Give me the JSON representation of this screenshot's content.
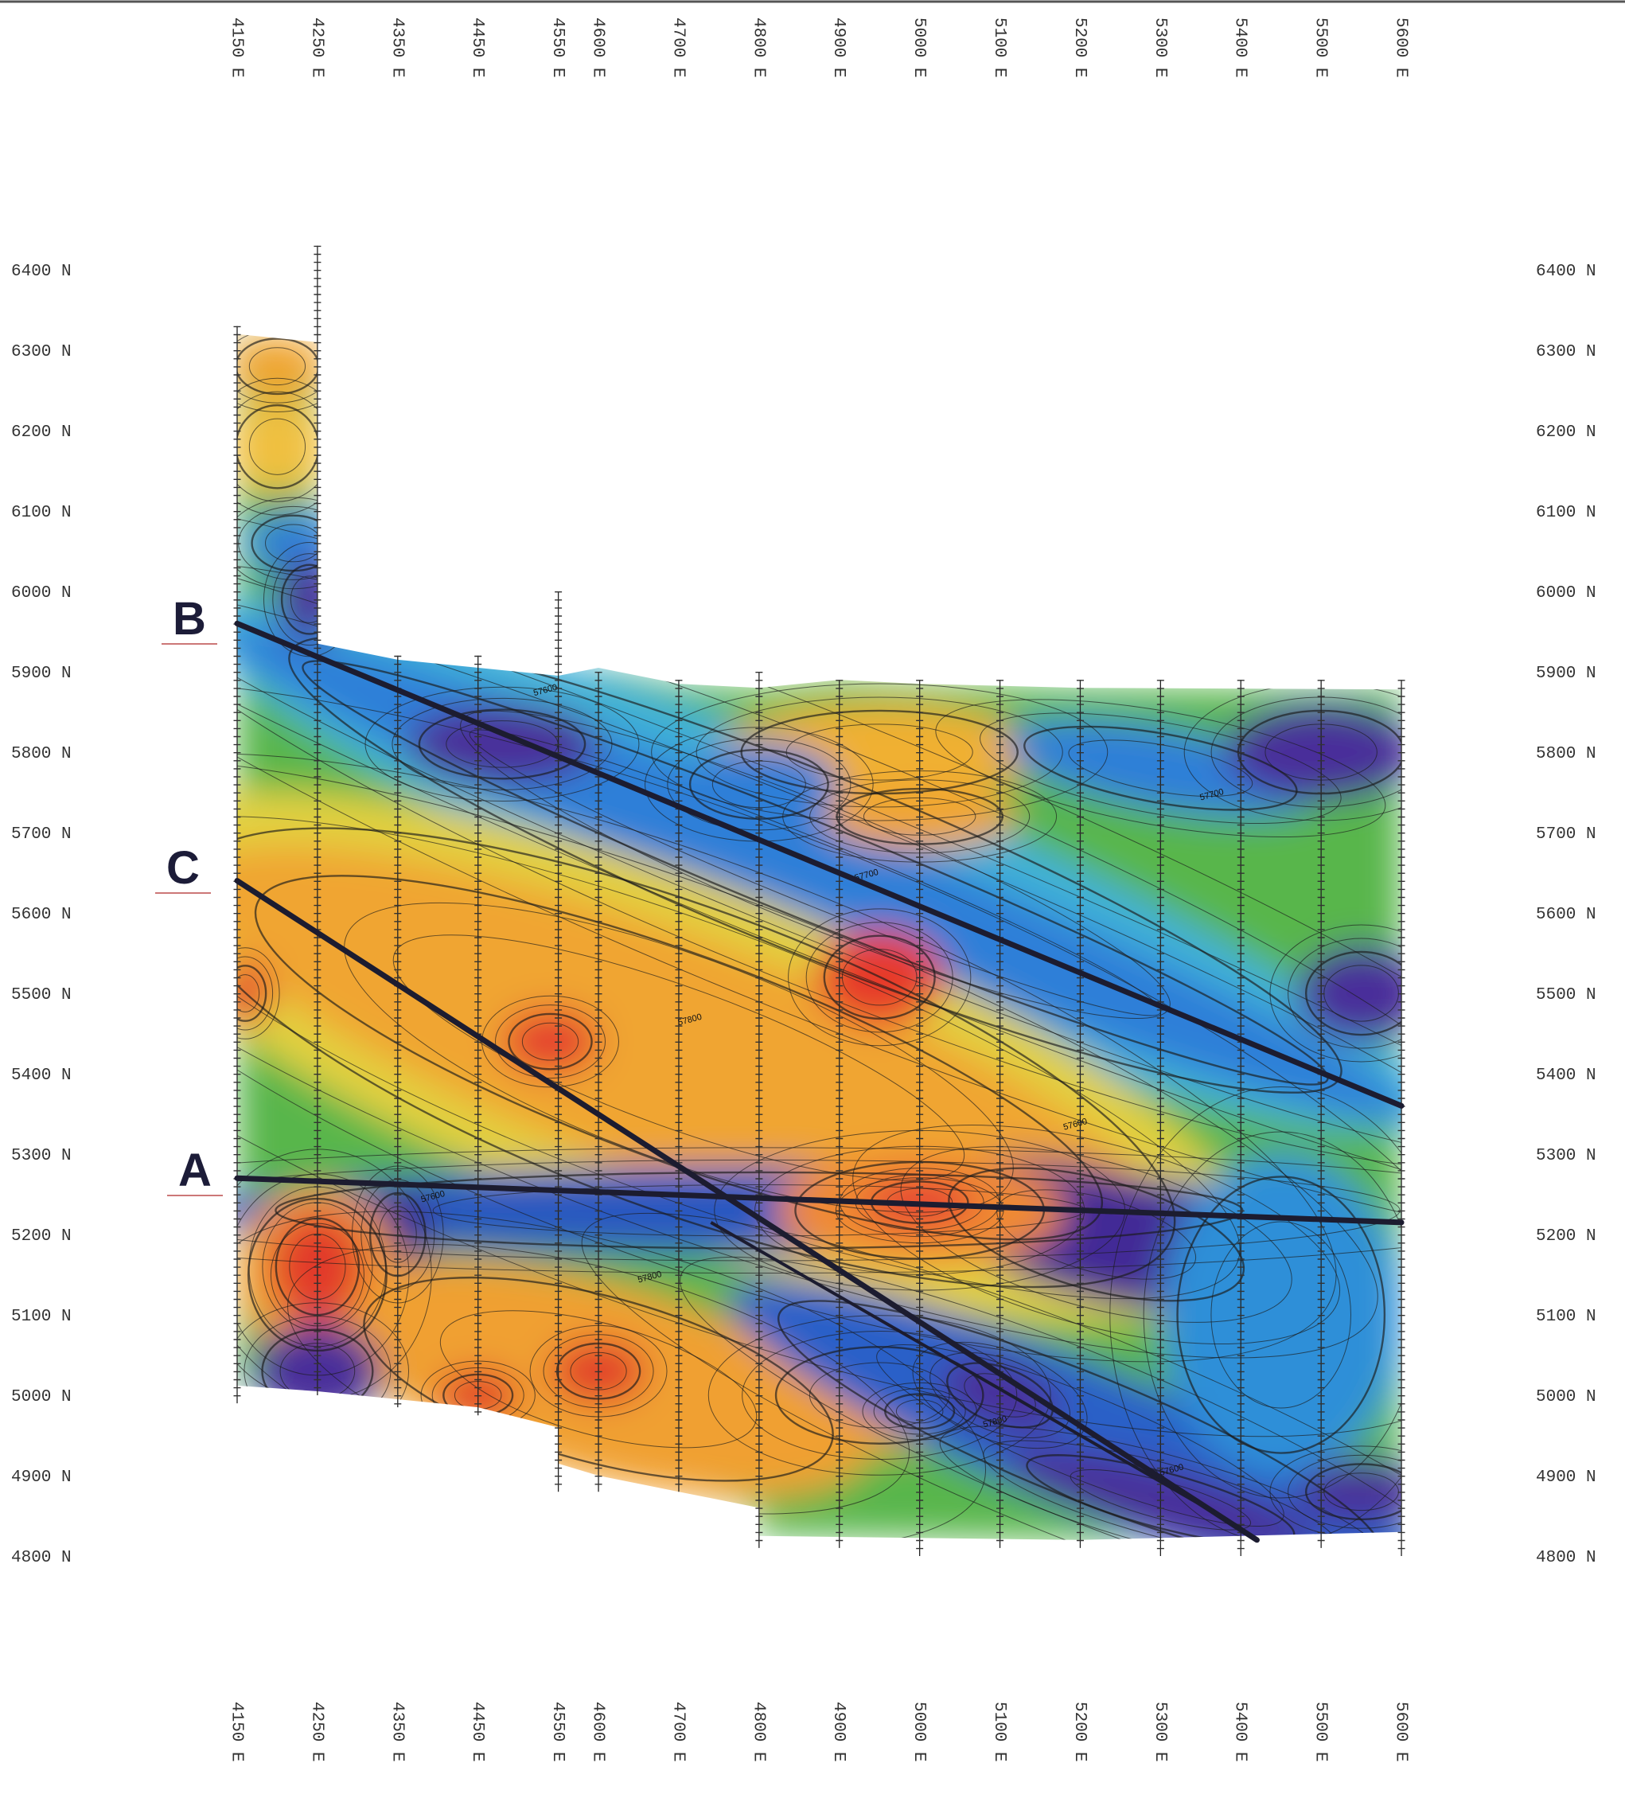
{
  "eastings": [
    {
      "value": 4150,
      "label": "4150 E"
    },
    {
      "value": 4250,
      "label": "4250 E"
    },
    {
      "value": 4350,
      "label": "4350 E"
    },
    {
      "value": 4450,
      "label": "4450 E"
    },
    {
      "value": 4550,
      "label": "4550 E"
    },
    {
      "value": 4600,
      "label": "4600 E"
    },
    {
      "value": 4700,
      "label": "4700 E"
    },
    {
      "value": 4800,
      "label": "4800 E"
    },
    {
      "value": 4900,
      "label": "4900 E"
    },
    {
      "value": 5000,
      "label": "5000 E"
    },
    {
      "value": 5100,
      "label": "5100 E"
    },
    {
      "value": 5200,
      "label": "5200 E"
    },
    {
      "value": 5300,
      "label": "5300 E"
    },
    {
      "value": 5400,
      "label": "5400 E"
    },
    {
      "value": 5500,
      "label": "5500 E"
    },
    {
      "value": 5600,
      "label": "5600 E"
    }
  ],
  "northings": [
    {
      "value": 6400,
      "label": "6400 N"
    },
    {
      "value": 6300,
      "label": "6300 N"
    },
    {
      "value": 6200,
      "label": "6200 N"
    },
    {
      "value": 6100,
      "label": "6100 N"
    },
    {
      "value": 6000,
      "label": "6000 N"
    },
    {
      "value": 5900,
      "label": "5900 N"
    },
    {
      "value": 5800,
      "label": "5800 N"
    },
    {
      "value": 5700,
      "label": "5700 N"
    },
    {
      "value": 5600,
      "label": "5600 N"
    },
    {
      "value": 5500,
      "label": "5500 N"
    },
    {
      "value": 5400,
      "label": "5400 N"
    },
    {
      "value": 5300,
      "label": "5300 N"
    },
    {
      "value": 5200,
      "label": "5200 N"
    },
    {
      "value": 5100,
      "label": "5100 N"
    },
    {
      "value": 5000,
      "label": "5000 N"
    },
    {
      "value": 4900,
      "label": "4900 N"
    },
    {
      "value": 4800,
      "label": "4800 N"
    }
  ],
  "faults": [
    "A",
    "B",
    "C"
  ],
  "contour_labels": [
    "57600",
    "57700",
    "57800"
  ]
}
